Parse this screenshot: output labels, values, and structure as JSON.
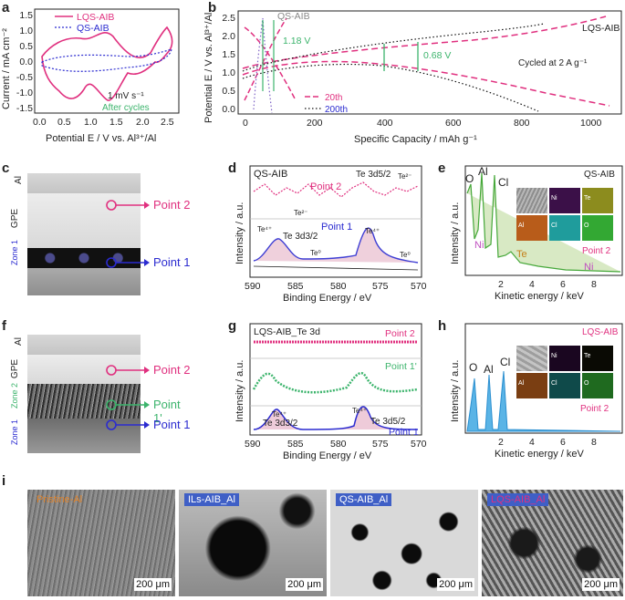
{
  "panel_letters": {
    "a": "a",
    "b": "b",
    "c": "c",
    "d": "d",
    "e": "e",
    "f": "f",
    "g": "g",
    "h": "h",
    "i": "i"
  },
  "panel_a": {
    "ylabel": "Current / mA cm⁻²",
    "xlabel": "Potential E / V vs. Al³⁺/Al",
    "legend": [
      "LQS-AIB",
      "QS-AIB"
    ],
    "note1": "1 mV s⁻¹",
    "note2": "After cycles",
    "xticks": [
      "0.0",
      "0.5",
      "1.0",
      "1.5",
      "2.0",
      "2.5"
    ],
    "yticks": [
      "-1.5",
      "-1.0",
      "-0.5",
      "0.0",
      "0.5",
      "1.0",
      "1.5"
    ]
  },
  "panel_b": {
    "ylabel": "Potential E / V vs. Al³⁺/Al",
    "xlabel": "Specific Capacity / mAh g⁻¹",
    "label_qs": "QS-AIB",
    "label_lqs": "LQS-AIB",
    "gap_qs": "1.18 V",
    "gap_lqs": "0.68 V",
    "condition": "Cycled at 2 A g⁻¹",
    "legend": [
      "20th",
      "200th"
    ],
    "xticks": [
      "0",
      "200",
      "400",
      "600",
      "800",
      "1000"
    ],
    "yticks": [
      "0.0",
      "0.5",
      "1.0",
      "1.5",
      "2.0",
      "2.5"
    ]
  },
  "panel_c": {
    "layer_al": "Al",
    "layer_gpe": "GPE",
    "zone": "Zone 1",
    "point2": "Point 2",
    "point1": "Point 1"
  },
  "panel_d": {
    "title": "QS-AIB",
    "ylabel": "Intensity / a.u.",
    "xlabel": "Binding Energy / eV",
    "point2": "Point 2",
    "point1": "Point 1",
    "te52": "Te 3d5/2",
    "te32": "Te 3d3/2",
    "te4_a": "Te⁴⁺",
    "te4_b": "Te⁴⁺",
    "te0_a": "Te⁰",
    "te0_b": "Te⁰",
    "te2_a": "Te²⁻",
    "te2_b": "Te²⁻",
    "xticks": [
      "590",
      "585",
      "580",
      "575",
      "570"
    ]
  },
  "panel_e": {
    "ylabel": "Intensity / a.u.",
    "xlabel": "Kinetic energy / keV",
    "title": "QS-AIB",
    "peak_o": "O",
    "peak_al": "Al",
    "peak_cl": "Cl",
    "peak_ni": "Ni",
    "peak_te": "Te",
    "peak_ni2": "Ni",
    "point": "Point 2",
    "maps": [
      "Ni",
      "Te",
      "Al",
      "Cl",
      "O"
    ],
    "xticks": [
      "2",
      "4",
      "6",
      "8"
    ]
  },
  "panel_f": {
    "layer_al": "Al",
    "layer_gpe": "GPE",
    "zone2": "Zone 2",
    "zone1": "Zone 1",
    "point2": "Point 2",
    "point1p": "Point 1'",
    "point1": "Point 1"
  },
  "panel_g": {
    "title": "LQS-AIB_Te 3d",
    "ylabel": "Intensity / a.u.",
    "xlabel": "Binding Energy / eV",
    "point2": "Point 2",
    "point1p": "Point 1'",
    "point1": "Point 1",
    "te4_a": "Te⁴⁺",
    "te4_b": "Te⁴⁺",
    "te32": "Te 3d3/2",
    "te52": "Te 3d5/2",
    "xticks": [
      "590",
      "585",
      "580",
      "575",
      "570"
    ]
  },
  "panel_h": {
    "ylabel": "Intensity / a.u.",
    "xlabel": "Kinetic energy / keV",
    "title": "LQS-AIB",
    "peak_o": "O",
    "peak_al": "Al",
    "peak_cl": "Cl",
    "point": "Point 2",
    "maps": [
      "Ni",
      "Te",
      "Al",
      "Cl",
      "O"
    ],
    "xticks": [
      "2",
      "4",
      "6",
      "8"
    ]
  },
  "panel_i": {
    "images": [
      {
        "label": "Pristine-Al",
        "scale": "200 μm"
      },
      {
        "label": "ILs-AIB_Al",
        "scale": "200 μm"
      },
      {
        "label": "QS-AIB_Al",
        "scale": "200 μm"
      },
      {
        "label": "LQS-AIB_Al",
        "scale": "200 μm"
      }
    ]
  },
  "colors": {
    "pink": "#e0307f",
    "navy": "#2b2bd0",
    "green": "#3cb46c",
    "grey": "#888888",
    "black": "#111111",
    "tagblue": "#3f5fc6"
  }
}
